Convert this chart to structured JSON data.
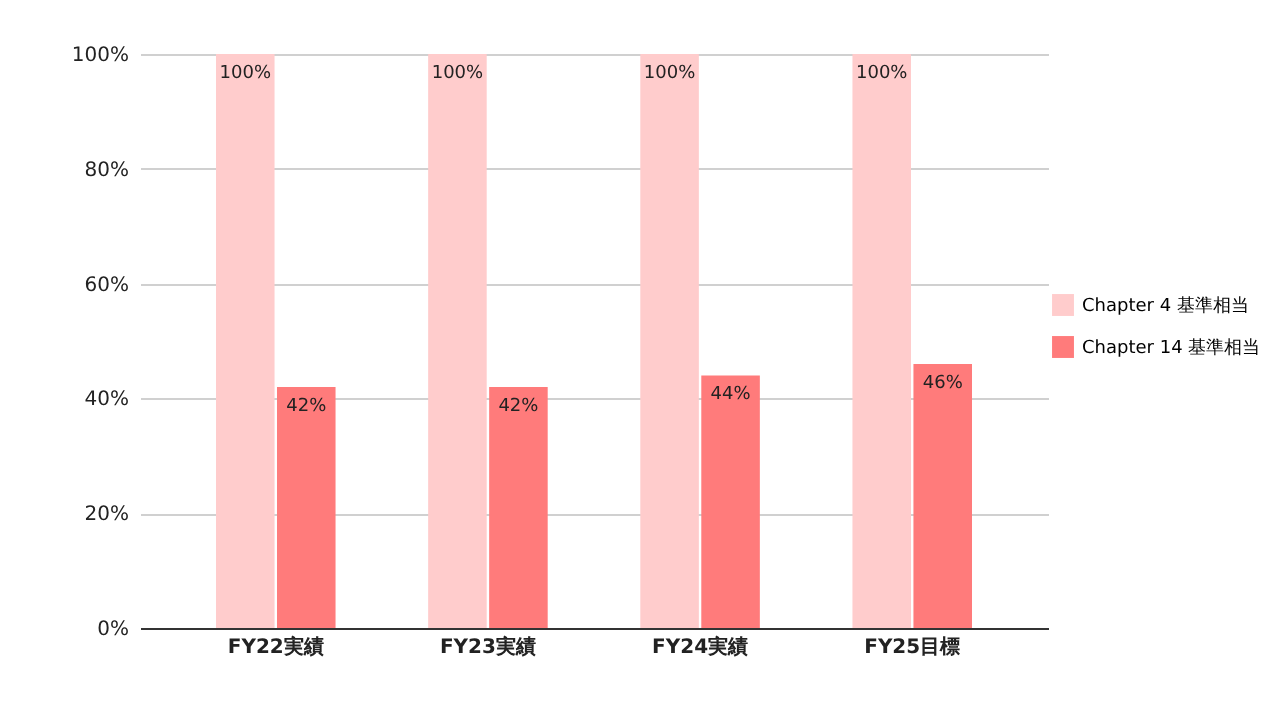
{
  "chart_data": {
    "type": "bar",
    "categories": [
      "FY22実績",
      "FY23実績",
      "FY24実績",
      "FY25目標"
    ],
    "series": [
      {
        "name": "Chapter 4 基準相当",
        "color": "#ffcccc",
        "values": [
          100,
          100,
          100,
          100
        ],
        "value_labels": [
          "100%",
          "100%",
          "100%",
          "100%"
        ]
      },
      {
        "name": "Chapter 14 基準相当",
        "color": "#ff7b7b",
        "values": [
          42,
          42,
          44,
          46
        ],
        "value_labels": [
          "42%",
          "42%",
          "44%",
          "46%"
        ]
      }
    ],
    "ylim": [
      0,
      100
    ],
    "yticks": [
      {
        "value": 0,
        "label": "0%"
      },
      {
        "value": 20,
        "label": "20%"
      },
      {
        "value": 40,
        "label": "40%"
      },
      {
        "value": 60,
        "label": "60%"
      },
      {
        "value": 80,
        "label": "80%"
      },
      {
        "value": 100,
        "label": "100%"
      }
    ],
    "grid": "y",
    "legend": "right"
  }
}
